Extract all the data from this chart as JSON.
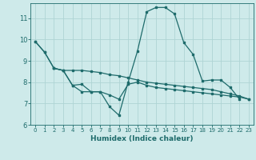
{
  "background_color": "#ceeaea",
  "grid_color": "#aed4d4",
  "line_color": "#1e6b6b",
  "xlabel": "Humidex (Indice chaleur)",
  "xlim": [
    -0.5,
    23.5
  ],
  "ylim": [
    6,
    11.7
  ],
  "yticks": [
    6,
    7,
    8,
    9,
    10,
    11
  ],
  "xticks": [
    0,
    1,
    2,
    3,
    4,
    5,
    6,
    7,
    8,
    9,
    10,
    11,
    12,
    13,
    14,
    15,
    16,
    17,
    18,
    19,
    20,
    21,
    22,
    23
  ],
  "lines": [
    {
      "x": [
        0,
        1,
        2,
        3,
        4,
        5,
        6,
        7,
        8,
        9,
        10,
        11,
        12,
        13,
        14,
        15,
        16,
        17,
        18,
        19,
        20,
        21,
        22
      ],
      "y": [
        9.9,
        9.4,
        8.65,
        8.55,
        7.85,
        7.55,
        7.55,
        7.55,
        6.85,
        6.45,
        8.0,
        9.45,
        11.3,
        11.5,
        11.5,
        11.2,
        9.85,
        9.3,
        8.05,
        8.1,
        8.1,
        7.75,
        7.2
      ]
    },
    {
      "x": [
        0,
        1,
        2,
        3,
        4,
        5,
        6,
        7,
        8,
        9,
        10,
        11,
        12,
        13,
        14,
        15,
        16,
        17,
        18,
        19,
        20,
        21,
        22,
        23
      ],
      "y": [
        9.9,
        9.4,
        8.65,
        8.55,
        8.55,
        8.55,
        8.5,
        8.45,
        8.35,
        8.3,
        8.2,
        8.1,
        8.0,
        7.95,
        7.9,
        7.85,
        7.8,
        7.75,
        7.7,
        7.65,
        7.55,
        7.45,
        7.35,
        7.2
      ]
    },
    {
      "x": [
        2,
        3,
        4,
        5,
        6,
        7,
        8,
        9,
        10,
        11,
        12,
        13,
        14,
        15,
        16,
        17,
        18,
        19,
        20,
        21,
        22,
        23
      ],
      "y": [
        8.65,
        8.55,
        7.85,
        7.9,
        7.55,
        7.55,
        7.4,
        7.2,
        7.9,
        8.0,
        7.85,
        7.75,
        7.7,
        7.65,
        7.6,
        7.55,
        7.5,
        7.45,
        7.4,
        7.35,
        7.3,
        7.2
      ]
    }
  ]
}
